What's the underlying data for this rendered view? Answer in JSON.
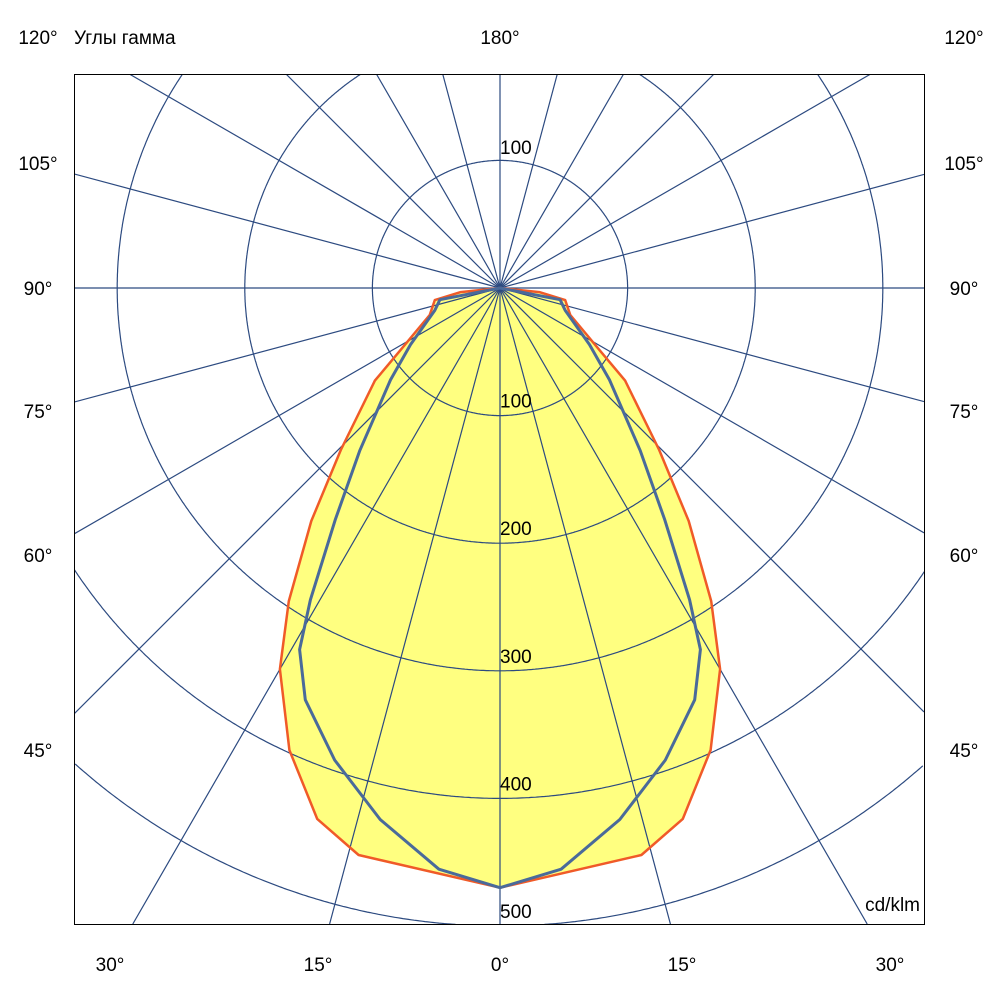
{
  "chart_data": {
    "type": "polar-line",
    "title": "Углы гамма",
    "unit_label": "cd/klm",
    "radial_ticks": [
      100,
      200,
      300,
      400,
      500
    ],
    "radial_range": [
      0,
      500
    ],
    "top_ring_label": "100",
    "angle_labels_left": [
      "120°",
      "105°",
      "90°",
      "75°",
      "60°",
      "45°"
    ],
    "angle_labels_right": [
      "120°",
      "105°",
      "90°",
      "75°",
      "60°",
      "45°"
    ],
    "angle_labels_bottom": [
      "30°",
      "15°",
      "0°",
      "15°",
      "30°"
    ],
    "angle_label_top": "180°",
    "spoke_step_deg": 15,
    "grid": true,
    "series": [
      {
        "color": "#f05a28",
        "fill": "#ffff80",
        "gamma": [
          0,
          14,
          19,
          24.5,
          30,
          34,
          39,
          44.5,
          53.5,
          58,
          69,
          79.5,
          84,
          90
        ],
        "values": [
          470,
          458,
          440,
          398,
          345,
          296,
          235,
          178,
          122,
          92,
          59,
          52,
          31,
          0
        ]
      },
      {
        "color": "#4a6a9a",
        "gamma": [
          0,
          6,
          12.7,
          19.3,
          25.3,
          29,
          31.3,
          35.4,
          40.8,
          50,
          57.7,
          71,
          79,
          90
        ],
        "values": [
          470,
          458,
          427,
          392,
          357,
          324,
          286,
          223,
          168,
          112,
          83,
          54,
          48,
          0
        ]
      }
    ]
  }
}
